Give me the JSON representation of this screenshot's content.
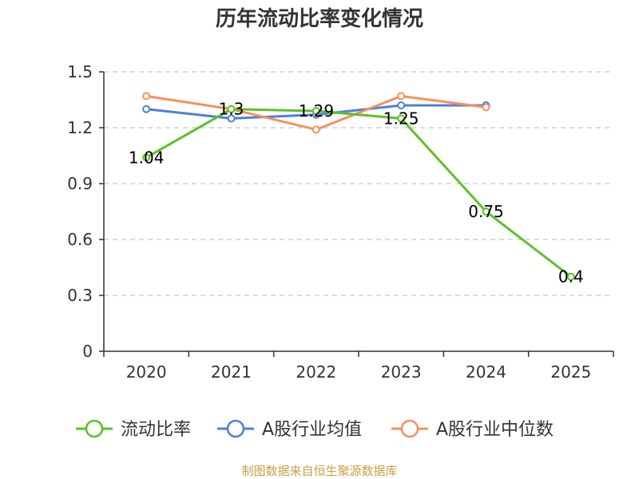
{
  "chart_data": {
    "type": "line",
    "title": "历年流动比率变化情况",
    "categories": [
      "2020",
      "2021",
      "2022",
      "2023",
      "2024",
      "2025"
    ],
    "ylim": [
      0,
      1.5
    ],
    "yticks": [
      "0",
      "0.3",
      "0.6",
      "0.9",
      "1.2",
      "1.5"
    ],
    "grid": true,
    "legend_position": "bottom",
    "series": [
      {
        "name": "流动比率",
        "color": "#5cc12a",
        "values": [
          1.04,
          1.3,
          1.29,
          1.25,
          0.75,
          0.4
        ],
        "labels": [
          "1.04",
          "1.3",
          "1.29",
          "1.25",
          "0.75",
          "0.4"
        ]
      },
      {
        "name": "A股行业均值",
        "color": "#4f7fdc",
        "values": [
          1.3,
          1.25,
          1.27,
          1.32,
          1.32,
          null
        ]
      },
      {
        "name": "A股行业中位数",
        "color": "#f5905c",
        "values": [
          1.37,
          1.3,
          1.19,
          1.37,
          1.31,
          null
        ]
      }
    ]
  },
  "source_text": "制图数据来自恒生聚源数据库"
}
